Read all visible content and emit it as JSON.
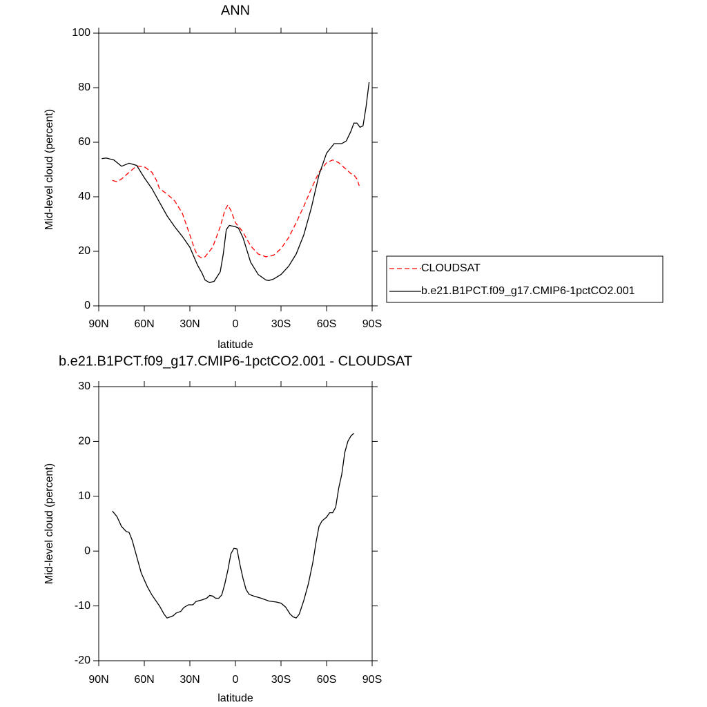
{
  "chart_data": [
    {
      "type": "line",
      "title": "ANN",
      "xlabel": "latitude",
      "ylabel": "Mid-level cloud (percent)",
      "xlim": [
        90,
        -90
      ],
      "xticks": [
        {
          "value": 90,
          "label": "90N"
        },
        {
          "value": 60,
          "label": "60N"
        },
        {
          "value": 30,
          "label": "30N"
        },
        0,
        {
          "value": -30,
          "label": "30S"
        },
        {
          "value": -60,
          "label": "60S"
        },
        {
          "value": -90,
          "label": "90S"
        }
      ],
      "ylim": [
        0,
        100
      ],
      "yticks": [
        0,
        20,
        40,
        60,
        80,
        100
      ],
      "legend_position": "right",
      "series": [
        {
          "name": "CLOUDSAT",
          "color": "#ff0000",
          "linestyle": "dashed",
          "x": [
            81,
            78,
            75,
            70,
            65,
            60,
            55,
            52,
            50,
            45,
            40,
            35,
            30,
            27,
            25,
            22,
            20,
            15,
            10,
            7,
            5,
            3,
            0,
            -3,
            -5,
            -10,
            -15,
            -20,
            -25,
            -30,
            -35,
            -40,
            -45,
            -50,
            -55,
            -60,
            -64,
            -68,
            -72,
            -76,
            -78,
            -80,
            -81.5
          ],
          "values": [
            46,
            45.5,
            46.5,
            49,
            51.3,
            51,
            49,
            46,
            43,
            41,
            38.5,
            34,
            26,
            21,
            18.5,
            17.5,
            18,
            21.5,
            29,
            35,
            37,
            35,
            30.5,
            28.5,
            27,
            22,
            19,
            18,
            18.5,
            21,
            25,
            30.5,
            36.5,
            43,
            49,
            52.5,
            53.5,
            52.5,
            50.5,
            48.5,
            48,
            46.5,
            44
          ]
        },
        {
          "name": "b.e21.B1PCT.f09_g17.CMIP6-1pctCO2.001",
          "color": "#000000",
          "linestyle": "solid",
          "x": [
            88,
            85,
            80,
            75,
            70,
            65,
            60,
            55,
            50,
            45,
            40,
            35,
            30,
            25,
            22,
            20,
            17,
            14,
            10,
            8,
            6,
            4,
            0,
            -2,
            -5,
            -10,
            -15,
            -20,
            -22,
            -25,
            -30,
            -35,
            -40,
            -45,
            -50,
            -55,
            -60,
            -65,
            -70,
            -73,
            -76,
            -78,
            -80,
            -82,
            -84,
            -86,
            -88
          ],
          "values": [
            54,
            54.2,
            53.5,
            51.2,
            52.3,
            51.5,
            47,
            43,
            38,
            33,
            29,
            25.5,
            21.5,
            15,
            12,
            9.5,
            8.5,
            9,
            12.5,
            19,
            28,
            29.5,
            29,
            28.5,
            25,
            16,
            11.5,
            9.5,
            9.3,
            9.8,
            11.5,
            14.5,
            19,
            26,
            36,
            48,
            56,
            59.5,
            59.5,
            60.5,
            64,
            67,
            67,
            65.5,
            66,
            73,
            82
          ]
        }
      ]
    },
    {
      "type": "line",
      "title": "b.e21.B1PCT.f09_g17.CMIP6-1pctCO2.001 - CLOUDSAT",
      "xlabel": "latitude",
      "ylabel": "Mid-level cloud (percent)",
      "xlim": [
        90,
        -90
      ],
      "xticks": [
        {
          "value": 90,
          "label": "90N"
        },
        {
          "value": 60,
          "label": "60N"
        },
        {
          "value": 30,
          "label": "30N"
        },
        0,
        {
          "value": -30,
          "label": "30S"
        },
        {
          "value": -60,
          "label": "60S"
        },
        {
          "value": -90,
          "label": "90S"
        }
      ],
      "ylim": [
        -20,
        30
      ],
      "yticks": [
        -20,
        -10,
        0,
        10,
        20,
        30
      ],
      "series": [
        {
          "color": "#000000",
          "linestyle": "solid",
          "x": [
            81,
            78,
            75,
            72,
            70,
            68,
            65,
            62,
            58,
            55,
            50,
            47,
            45,
            43,
            41,
            39,
            36,
            34,
            31,
            28,
            26,
            22,
            19,
            17,
            15,
            13,
            11,
            9,
            7,
            5,
            3,
            1,
            -1,
            -3,
            -5,
            -7,
            -9,
            -12,
            -17,
            -22,
            -27,
            -30,
            -33,
            -36,
            -38,
            -40,
            -42,
            -45,
            -48,
            -51,
            -53,
            -55,
            -57,
            -60,
            -62,
            -64,
            -66,
            -68,
            -70,
            -72,
            -74,
            -76,
            -78
          ],
          "values": [
            7.3,
            6.3,
            4.5,
            3.6,
            3.4,
            2,
            -1,
            -4,
            -6.5,
            -8,
            -10,
            -11.5,
            -12.2,
            -12,
            -11.8,
            -11.3,
            -11,
            -10.3,
            -9.8,
            -9.8,
            -9.2,
            -8.9,
            -8.6,
            -8.1,
            -8.2,
            -8.6,
            -8.6,
            -8,
            -6,
            -3.5,
            -0.5,
            0.5,
            0.4,
            -2.5,
            -5,
            -7,
            -7.9,
            -8.2,
            -8.6,
            -9.1,
            -9.3,
            -9.5,
            -10.2,
            -11.5,
            -12,
            -12.2,
            -11.5,
            -9,
            -6,
            -2,
            1.5,
            4.5,
            5.5,
            6.2,
            7,
            7,
            8,
            11.5,
            14,
            18,
            20,
            21,
            21.5
          ]
        }
      ]
    }
  ]
}
